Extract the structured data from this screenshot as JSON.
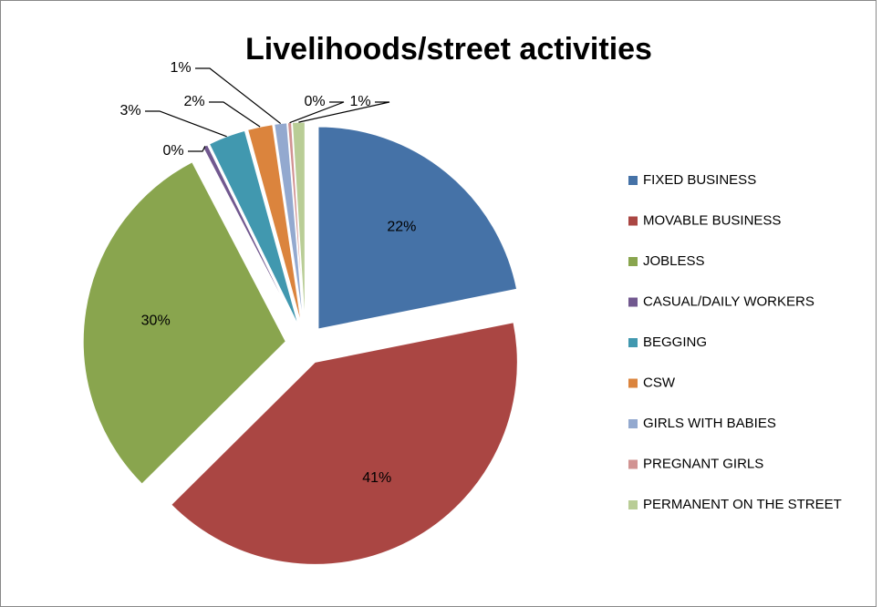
{
  "chart_data": {
    "type": "pie",
    "title": "Livelihoods/street activities",
    "categories": [
      "FIXED BUSINESS",
      "MOVABLE BUSINESS",
      "JOBLESS",
      "CASUAL/DAILY WORKERS",
      "BEGGING",
      "CSW",
      "GIRLS WITH BABIES",
      "PREGNANT GIRLS",
      "PERMANENT ON THE STREET"
    ],
    "values": [
      22,
      41,
      30,
      0.4,
      3,
      2,
      1,
      0.3,
      1
    ],
    "value_labels": [
      "22%",
      "41%",
      "30%",
      "0%",
      "3%",
      "2%",
      "1%",
      "0%",
      "1%"
    ],
    "colors": [
      "#4572a7",
      "#aa4643",
      "#89a54e",
      "#71588f",
      "#4198af",
      "#db843d",
      "#93a9cf",
      "#d19392",
      "#b9cd96"
    ],
    "legend": "right"
  }
}
